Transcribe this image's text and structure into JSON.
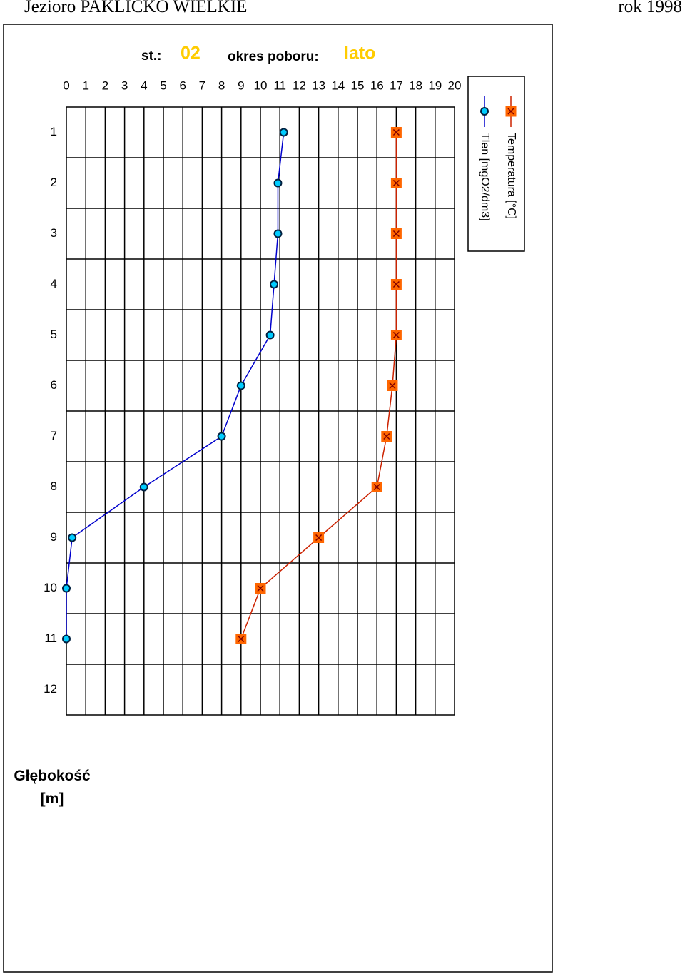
{
  "header": {
    "title": "Jezioro PAKLICKO WIELKIE",
    "year": "rok 1998"
  },
  "chart_data": {
    "type": "line",
    "station_label": "st.:",
    "station": "02",
    "period_label": "okres poboru:",
    "period": "lato",
    "y_label": "Głębokość [m]",
    "categories": [
      1,
      2,
      3,
      4,
      5,
      6,
      7,
      8,
      9,
      10,
      11,
      12
    ],
    "series": [
      {
        "name": "Temperatura [°C]",
        "color": "#cc2200",
        "marker_color": "#ff6600",
        "marker": "square-x",
        "values": [
          17.0,
          17.0,
          17.0,
          17.0,
          17.0,
          16.8,
          16.5,
          16.0,
          13.0,
          10.0,
          9.0,
          null
        ]
      },
      {
        "name": "Tlen [mgO2/dm3]",
        "color": "#0000cc",
        "marker_color": "#00ccff",
        "marker": "circle",
        "values": [
          11.2,
          10.9,
          10.9,
          10.7,
          10.5,
          9.0,
          8.0,
          4.0,
          0.3,
          0.0,
          0.0,
          null
        ]
      }
    ],
    "xlim": [
      0,
      20
    ],
    "xticks": [
      0,
      1,
      2,
      3,
      4,
      5,
      6,
      7,
      8,
      9,
      10,
      11,
      12,
      13,
      14,
      15,
      16,
      17,
      18,
      19,
      20
    ],
    "grid": true,
    "legend": "right"
  }
}
